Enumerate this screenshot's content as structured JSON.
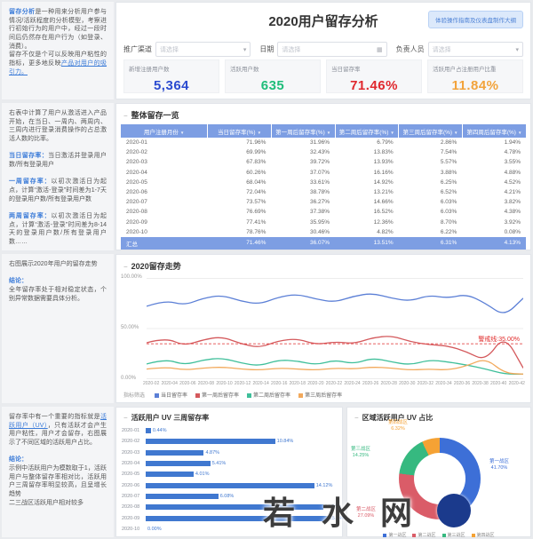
{
  "page": {
    "title": "2020用户留存分析",
    "guide_button": "体验操作指南及仪表盘制作大纲"
  },
  "watermark": {
    "text": "若水网"
  },
  "sidebar": {
    "blocks": [
      {
        "segments": [
          {
            "t": "留存分析",
            "c": "b"
          },
          {
            "t": "是一种用来分析用户参与情况/活跃程度的分析模型，考察进行初始行为的用户中，经过一段时间后仍然存在用户行为（如登录、消费）。"
          },
          {
            "br": true
          },
          {
            "t": "留存不仅是个可以反映用户粘性的指标，更多地反映"
          },
          {
            "t": "产品对用户的吸引力。",
            "c": "l"
          }
        ]
      },
      {
        "segments": [
          {
            "t": "右表中计算了用户从激活进入产品开始，在当日、一周内、两周内、三周内进行登录消费操作的占总激活人数的比率。"
          },
          {
            "br": true
          },
          {
            "br": true
          },
          {
            "t": "当日留存率：",
            "c": "b"
          },
          {
            "t": "当日激活并登录用户数/所有登录用户"
          },
          {
            "br": true
          },
          {
            "br": true
          },
          {
            "t": "一周留存率：",
            "c": "b"
          },
          {
            "t": "以初次激活日为起点，计算“激活-登录”时间差为1-7天的登录用户数/所有登录用户数"
          },
          {
            "br": true
          },
          {
            "br": true
          },
          {
            "t": "两周留存率：",
            "c": "b"
          },
          {
            "t": "以初次激活日为起点，计算“激活-登录”时间差为8-14天的登录用户数/所有登录用户数……"
          },
          {
            "br": true
          },
          {
            "br": true
          },
          {
            "t": "结论：",
            "c": "b"
          },
          {
            "br": true
          },
          {
            "t": "一周留存率环比当日下降趋势明显，需要整理用户特性，提升产品使用粘性"
          },
          {
            "br": true
          },
          {
            "t": "四周留存率下降趋缓，说明已对用户进行了一定分层细化，需要针对流失用户进行精细化运营管理"
          }
        ]
      },
      {
        "segments": [
          {
            "t": "右图展示2020年用户的留存走势"
          },
          {
            "br": true
          },
          {
            "br": true
          },
          {
            "t": "结论：",
            "c": "b"
          },
          {
            "br": true
          },
          {
            "t": "全年留存率处于相对稳定状态，个别异常数据需要具体分析。"
          }
        ]
      },
      {
        "segments": [
          {
            "t": "留存率中有一个重要的指标就是"
          },
          {
            "t": "活跃用户（UV）",
            "c": "l"
          },
          {
            "t": "，只有活跃才会产生用户粘性，用户才会留存，右图展示了不同区域的活跃用户占比。"
          },
          {
            "br": true
          },
          {
            "br": true
          },
          {
            "t": "结论：",
            "c": "b"
          },
          {
            "br": true
          },
          {
            "t": "示例中活跃用户为模数取于1，活跃用户与整体留存率相对比，活跃用户三周留存率明显较高，且呈增长趋势"
          },
          {
            "br": true
          },
          {
            "t": "二三战区活跃用户相对较多"
          }
        ]
      }
    ]
  },
  "filters": [
    {
      "key": "channel",
      "label": "推广渠道",
      "placeholder": "请选择",
      "icon": "chevron"
    },
    {
      "key": "date",
      "label": "日期",
      "placeholder": "请选择",
      "icon": "calendar"
    },
    {
      "key": "owner",
      "label": "负责人员",
      "placeholder": "请选择",
      "icon": "chevron"
    }
  ],
  "kpis": [
    {
      "label": "新增注册用户数",
      "value": "5,364",
      "color": "#2b4bd0"
    },
    {
      "label": "活跃用户数",
      "value": "635",
      "color": "#1fbd7a"
    },
    {
      "label": "当日留存率",
      "value": "71.46%",
      "color": "#e0282e"
    },
    {
      "label": "活跃用户占注册用户比重",
      "value": "11.84%",
      "color": "#f2a33c"
    }
  ],
  "table": {
    "title": "整体留存一览",
    "columns": [
      "用户注册月份",
      "当日留存率(%)",
      "第一周后留存率(%)",
      "第二周后留存率(%)",
      "第三周后留存率(%)",
      "第四周后留存率(%)"
    ],
    "rows": [
      [
        "2020-01",
        "71.96%",
        "31.96%",
        "6.79%",
        "2.86%",
        "1.94%"
      ],
      [
        "2020-02",
        "69.99%",
        "32.43%",
        "13.83%",
        "7.54%",
        "4.78%"
      ],
      [
        "2020-03",
        "67.83%",
        "39.72%",
        "13.93%",
        "5.57%",
        "3.55%"
      ],
      [
        "2020-04",
        "60.26%",
        "37.07%",
        "16.16%",
        "3.88%",
        "4.88%"
      ],
      [
        "2020-05",
        "68.04%",
        "33.61%",
        "14.92%",
        "6.25%",
        "4.52%"
      ],
      [
        "2020-06",
        "72.04%",
        "38.78%",
        "13.21%",
        "6.52%",
        "4.21%"
      ],
      [
        "2020-07",
        "73.57%",
        "36.27%",
        "14.66%",
        "6.03%",
        "3.82%"
      ],
      [
        "2020-08",
        "76.69%",
        "37.38%",
        "16.52%",
        "6.03%",
        "4.38%"
      ],
      [
        "2020-09",
        "77.41%",
        "35.95%",
        "12.36%",
        "8.70%",
        "3.92%"
      ],
      [
        "2020-10",
        "78.76%",
        "30.46%",
        "4.82%",
        "6.22%",
        "0.08%"
      ]
    ],
    "summary": {
      "label": "汇总",
      "values": [
        "71.46%",
        "36.07%",
        "13.51%",
        "6.31%",
        "4.13%"
      ]
    }
  },
  "chart_data": [
    {
      "type": "line",
      "title": "2020留存走势",
      "legend_label": "指标筛选",
      "x": [
        "2020-02",
        "2020-04",
        "2020-06",
        "2020-08",
        "2020-10",
        "2020-12",
        "2020-14",
        "2020-16",
        "2020-18",
        "2020-20",
        "2020-22",
        "2020-24",
        "2020-26",
        "2020-28",
        "2020-30",
        "2020-32",
        "2020-34",
        "2020-36",
        "2020-38",
        "2020-40",
        "2020-42"
      ],
      "series": [
        {
          "name": "当日留存率",
          "color": "#5b7fd6",
          "values": [
            72,
            78,
            73,
            80,
            83,
            77,
            74,
            81,
            84,
            79,
            76,
            82,
            85,
            80,
            77,
            83,
            80,
            84,
            75,
            62,
            80
          ]
        },
        {
          "name": "第一周后留存率",
          "color": "#d4595c",
          "values": [
            36,
            41,
            33,
            39,
            42,
            35,
            31,
            38,
            40,
            34,
            37,
            35,
            41,
            43,
            37,
            34,
            33,
            27,
            18,
            44,
            11
          ]
        },
        {
          "name": "第二周后留存率",
          "color": "#3fbf9a",
          "values": [
            15,
            20,
            14,
            19,
            21,
            16,
            13,
            19,
            18,
            14,
            19,
            15,
            21,
            17,
            14,
            19,
            17,
            14,
            10,
            5,
            5
          ]
        },
        {
          "name": "第三周后留存率",
          "color": "#f2a95c",
          "values": [
            10,
            12,
            9,
            11,
            12,
            10,
            9,
            11,
            10,
            9,
            11,
            10,
            12,
            11,
            9,
            10,
            9,
            13,
            21,
            6,
            5
          ]
        }
      ],
      "threshold": {
        "value": 35,
        "label": "警戒线:35.00%",
        "color": "#e02b2b"
      },
      "ylim": [
        0,
        100
      ],
      "yticks": [
        "100.00%",
        "50.00%",
        "0.00%"
      ],
      "grid": true,
      "legend_position": "bottom"
    },
    {
      "type": "bar",
      "title": "活跃用户 UV 三周留存率",
      "categories": [
        "2020-01",
        "2020-02",
        "2020-03",
        "2020-04",
        "2020-05",
        "2020-06",
        "2020-07",
        "2020-08",
        "2020-09",
        "2020-10"
      ],
      "values": [
        0.44,
        10.84,
        4.87,
        5.41,
        4.01,
        14.12,
        6.08,
        14.85,
        15.24,
        0.0
      ],
      "labels": [
        "0.44%",
        "10.84%",
        "4.87%",
        "5.41%",
        "4.01%",
        "14.12%",
        "6.08%",
        "14.85%",
        "15.24%",
        "0.00%"
      ],
      "color": "#4078d0",
      "xlim": [
        0,
        16
      ],
      "orientation": "horizontal"
    },
    {
      "type": "pie",
      "title": "区域活跃用户 UV 占比",
      "labels": [
        "第一战区",
        "第二战区",
        "第三战区",
        "第四战区"
      ],
      "values": [
        41.7,
        27.09,
        14.25,
        6.32
      ],
      "display": [
        "41.70%",
        "27.09%",
        "14.25%",
        "6.32%"
      ],
      "colors": [
        "#3d6fd7",
        "#da5c68",
        "#36b980",
        "#f5a234"
      ],
      "legend_position": "bottom"
    }
  ]
}
